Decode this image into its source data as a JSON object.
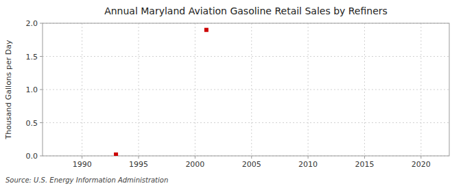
{
  "chart_data": {
    "type": "scatter",
    "title": "Annual Maryland Aviation Gasoline Retail Sales by Refiners",
    "ylabel": "Thousand Gallons per Day",
    "source": "Source: U.S. Energy Information Administration",
    "x": [
      1993,
      2001
    ],
    "values": [
      0.02,
      1.9
    ],
    "color": "#cc0000",
    "marker": "square",
    "xlim": [
      1986.5,
      2022.5
    ],
    "ylim": [
      0.0,
      2.0
    ],
    "xticks": [
      1990,
      1995,
      2000,
      2005,
      2010,
      2015,
      2020
    ],
    "yticks": [
      {
        "value": 0.0,
        "label": "0.0"
      },
      0.5,
      {
        "value": 1.0,
        "label": "1.0"
      },
      1.5,
      {
        "value": 2.0,
        "label": "2.0"
      }
    ],
    "grid": true
  }
}
